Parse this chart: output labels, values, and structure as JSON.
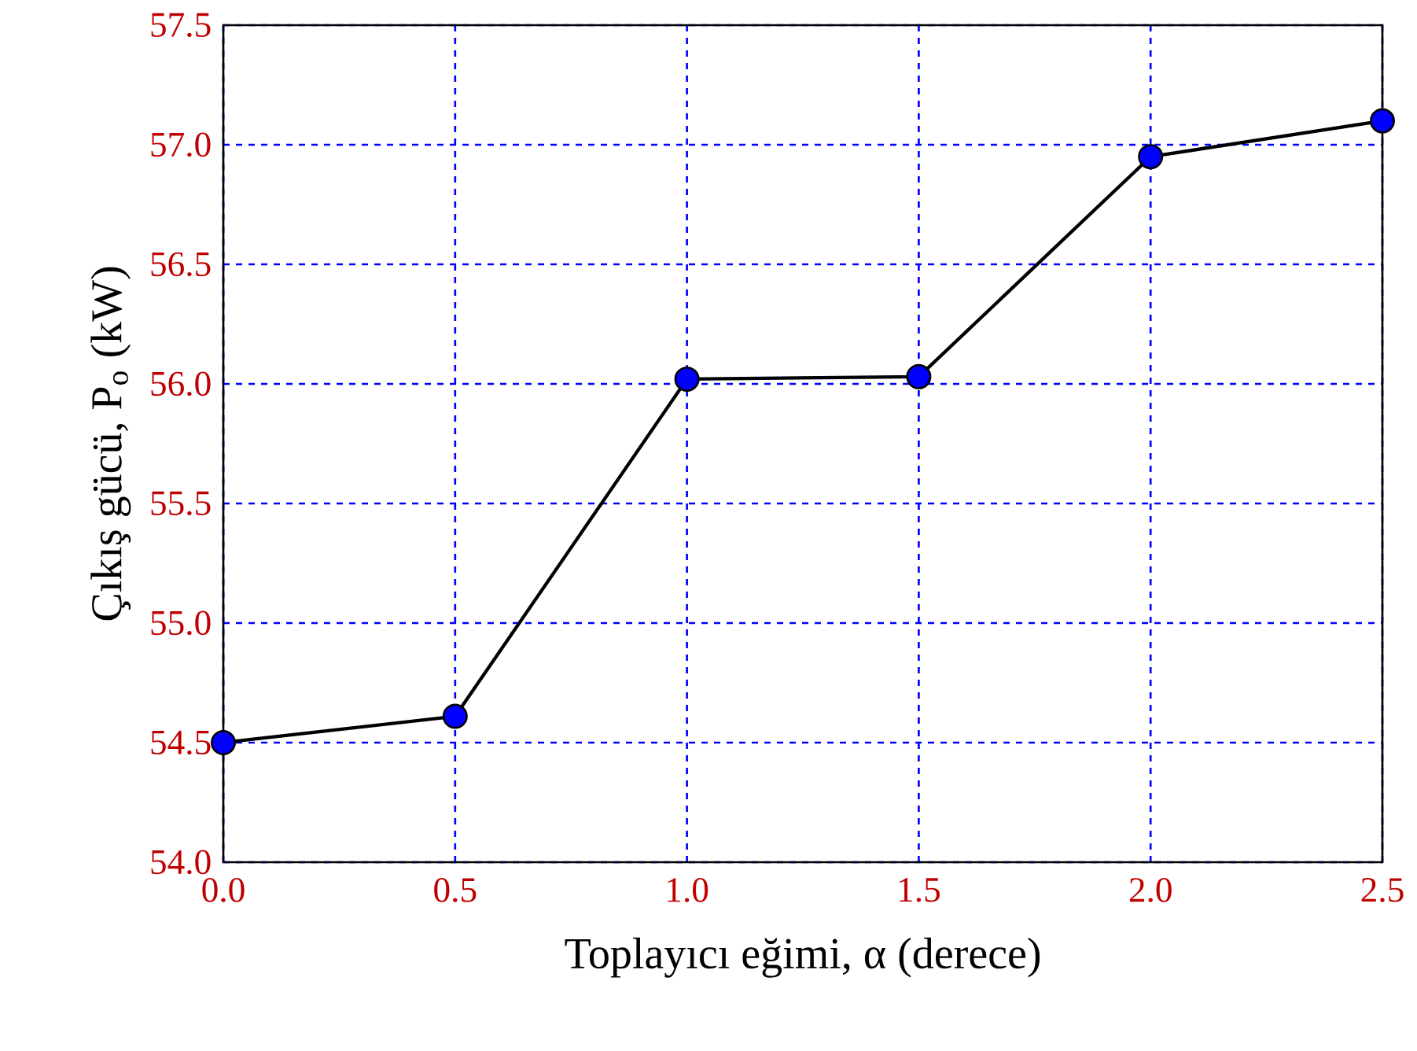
{
  "chart_data": {
    "type": "line",
    "xlabel": "Toplayıcı eğimi, α (derece)",
    "ylabel": "Çıkış gücü, P$_{o}$ (kW)",
    "x": [
      0.0,
      0.5,
      1.0,
      1.5,
      2.0,
      2.5
    ],
    "series": [
      {
        "color": "#000000",
        "values": [
          54.5,
          54.61,
          56.02,
          56.03,
          56.95,
          57.1
        ]
      }
    ],
    "xlim": [
      0,
      2.5
    ],
    "ylim": [
      54,
      57.5
    ],
    "xticks": [
      {
        "value": 0,
        "label": "0.0"
      },
      {
        "value": 0.5,
        "label": "0.5"
      },
      {
        "value": 1,
        "label": "1.0"
      },
      {
        "value": 1.5,
        "label": "1.5"
      },
      {
        "value": 2,
        "label": "2.0"
      },
      {
        "value": 2.5,
        "label": "2.5"
      }
    ],
    "yticks": [
      {
        "value": 54,
        "label": "54.0"
      },
      {
        "value": 54.5,
        "label": "54.5"
      },
      {
        "value": 55,
        "label": "55.0"
      },
      {
        "value": 55.5,
        "label": "55.5"
      },
      {
        "value": 56,
        "label": "56.0"
      },
      {
        "value": 56.5,
        "label": "56.5"
      },
      {
        "value": 57,
        "label": "57.0"
      },
      {
        "value": 57.5,
        "label": "57.5"
      }
    ],
    "grid": true,
    "marker": "circle",
    "line_style": "solid"
  }
}
